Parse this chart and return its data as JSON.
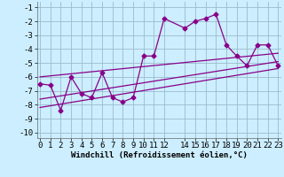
{
  "title": "",
  "xlabel": "Windchill (Refroidissement éolien,°C)",
  "bg_color": "#cceeff",
  "line_color": "#880088",
  "grid_color": "#99bbcc",
  "main_x": [
    0,
    1,
    2,
    3,
    4,
    5,
    6,
    7,
    8,
    9,
    10,
    11,
    12,
    14,
    15,
    16,
    17,
    18,
    19,
    20,
    21,
    22,
    23
  ],
  "main_y": [
    -6.5,
    -6.6,
    -8.4,
    -6.0,
    -7.2,
    -7.5,
    -5.7,
    -7.5,
    -7.8,
    -7.5,
    -4.5,
    -4.5,
    -1.8,
    -2.5,
    -2.0,
    -1.8,
    -1.5,
    -3.7,
    -4.5,
    -5.2,
    -3.7,
    -3.7,
    -5.2
  ],
  "line1_x": [
    0,
    23
  ],
  "line1_y": [
    -6.0,
    -4.3
  ],
  "line2_x": [
    0,
    23
  ],
  "line2_y": [
    -7.6,
    -4.9
  ],
  "line3_x": [
    0,
    23
  ],
  "line3_y": [
    -8.2,
    -5.4
  ],
  "xlim": [
    -0.3,
    23.3
  ],
  "ylim": [
    -10.4,
    -0.6
  ],
  "xticks": [
    0,
    1,
    2,
    3,
    4,
    5,
    6,
    7,
    8,
    9,
    10,
    11,
    12,
    14,
    15,
    16,
    17,
    18,
    19,
    20,
    21,
    22,
    23
  ],
  "yticks": [
    -10,
    -9,
    -8,
    -7,
    -6,
    -5,
    -4,
    -3,
    -2,
    -1
  ],
  "xlabel_fontsize": 6.5,
  "tick_fontsize": 6.5,
  "marker": "D",
  "markersize": 2.5,
  "linewidth": 0.9
}
